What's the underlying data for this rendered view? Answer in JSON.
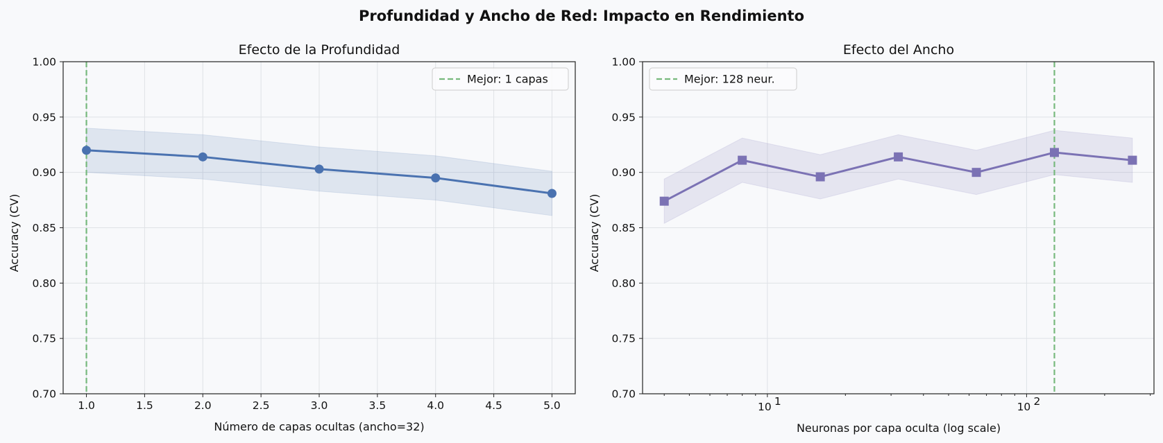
{
  "figure": {
    "suptitle": "Profundidad y Ancho de Red: Impacto en Rendimiento",
    "background": "#f8f9fb"
  },
  "chart_data": [
    {
      "type": "line",
      "title": "Efecto de la Profundidad",
      "xlabel": "Número de capas ocultas (ancho=32)",
      "ylabel": "Accuracy (CV)",
      "x_scale": "linear",
      "xlim": [
        0.8,
        5.2
      ],
      "ylim": [
        0.7,
        1.0
      ],
      "x_ticks": [
        1.0,
        1.5,
        2.0,
        2.5,
        3.0,
        3.5,
        4.0,
        4.5,
        5.0
      ],
      "x_tick_labels": [
        "1.0",
        "1.5",
        "2.0",
        "2.5",
        "3.0",
        "3.5",
        "4.0",
        "4.5",
        "5.0"
      ],
      "y_ticks": [
        0.7,
        0.75,
        0.8,
        0.85,
        0.9,
        0.95,
        1.0
      ],
      "y_tick_labels": [
        "0.70",
        "0.75",
        "0.80",
        "0.85",
        "0.90",
        "0.95",
        "1.00"
      ],
      "grid": true,
      "x": [
        1,
        2,
        3,
        4,
        5
      ],
      "series": [
        {
          "values": [
            0.92,
            0.914,
            0.903,
            0.895,
            0.881
          ],
          "band_lower": [
            0.9,
            0.894,
            0.883,
            0.875,
            0.861
          ],
          "band_upper": [
            0.94,
            0.934,
            0.923,
            0.915,
            0.901
          ],
          "marker": "circle",
          "color": "#4a72b0"
        }
      ],
      "reference_line": {
        "x": 1,
        "color": "#77b97d",
        "style": "dashed"
      },
      "legend": {
        "position": "top-right",
        "entries": [
          "Mejor: 1 capas"
        ]
      }
    },
    {
      "type": "line",
      "title": "Efecto del Ancho",
      "xlabel": "Neuronas por capa oculta (log scale)",
      "ylabel": "Accuracy (CV)",
      "x_scale": "log",
      "xlim": [
        3.3,
        310
      ],
      "ylim": [
        0.7,
        1.0
      ],
      "x_major_ticks": [
        10,
        100
      ],
      "x_major_tick_labels": [
        "10",
        "10"
      ],
      "x_major_tick_exponents": [
        "1",
        "2"
      ],
      "x_minor_ticks": [
        4,
        5,
        6,
        7,
        8,
        9,
        20,
        30,
        40,
        50,
        60,
        70,
        80,
        90,
        200,
        300
      ],
      "y_ticks": [
        0.7,
        0.75,
        0.8,
        0.85,
        0.9,
        0.95,
        1.0
      ],
      "y_tick_labels": [
        "0.70",
        "0.75",
        "0.80",
        "0.85",
        "0.90",
        "0.95",
        "1.00"
      ],
      "grid": true,
      "x": [
        4,
        8,
        16,
        32,
        64,
        128,
        256
      ],
      "series": [
        {
          "values": [
            0.874,
            0.911,
            0.896,
            0.914,
            0.9,
            0.918,
            0.911
          ],
          "band_lower": [
            0.854,
            0.891,
            0.876,
            0.894,
            0.88,
            0.898,
            0.891
          ],
          "band_upper": [
            0.894,
            0.931,
            0.916,
            0.934,
            0.92,
            0.938,
            0.931
          ],
          "marker": "square",
          "color": "#7b72b4"
        }
      ],
      "reference_line": {
        "x": 128,
        "color": "#77b97d",
        "style": "dashed"
      },
      "legend": {
        "position": "top-left",
        "entries": [
          "Mejor: 128 neur."
        ]
      }
    }
  ]
}
